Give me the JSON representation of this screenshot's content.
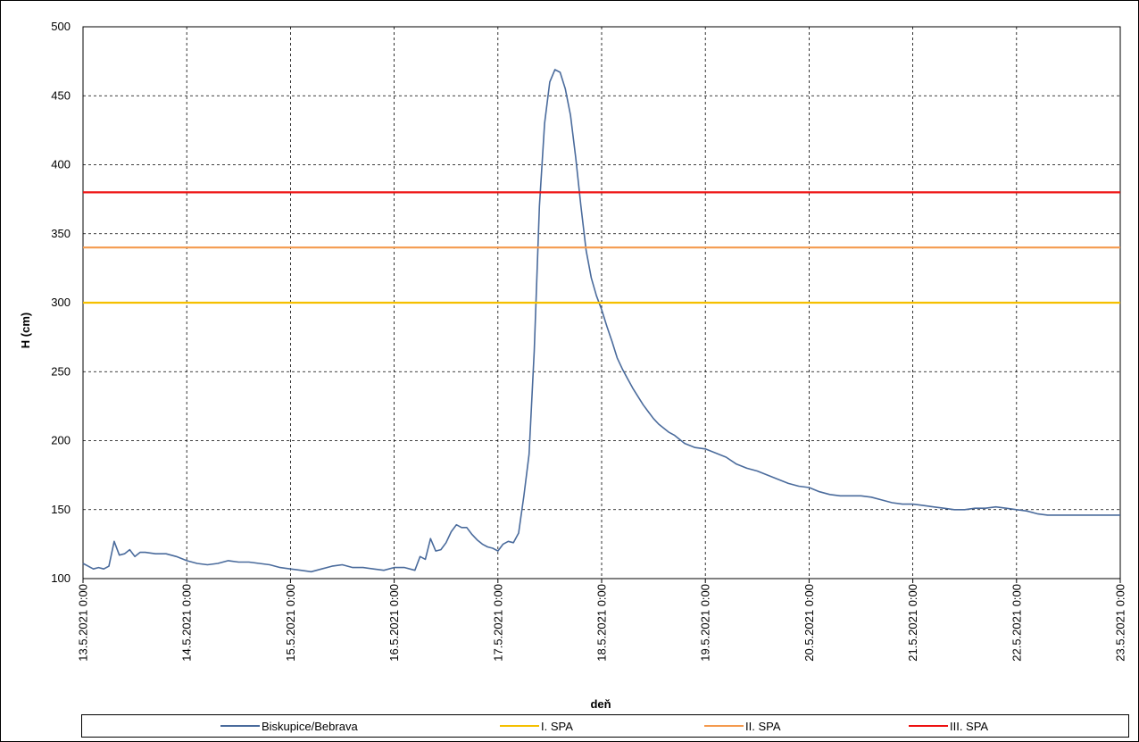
{
  "chart_data": {
    "type": "line",
    "xlabel": "deň",
    "ylabel": "H (cm)",
    "ylim": [
      100,
      500
    ],
    "yticks": [
      "100",
      "150",
      "200",
      "250",
      "300",
      "350",
      "400",
      "450",
      "500"
    ],
    "xticks": [
      "13.5.2021 0:00",
      "14.5.2021 0:00",
      "15.5.2021 0:00",
      "16.5.2021 0:00",
      "17.5.2021 0:00",
      "18.5.2021 0:00",
      "19.5.2021 0:00",
      "20.5.2021 0:00",
      "21.5.2021 0:00",
      "22.5.2021 0:00",
      "23.5.2021 0:00"
    ],
    "grid": true,
    "legend_position": "bottom",
    "series": [
      {
        "name": "Biskupice/Bebrava",
        "color": "#4a6b9c",
        "x_days": [
          0,
          0.05,
          0.1,
          0.15,
          0.2,
          0.25,
          0.3,
          0.35,
          0.4,
          0.45,
          0.5,
          0.55,
          0.6,
          0.7,
          0.8,
          0.9,
          1.0,
          1.1,
          1.2,
          1.3,
          1.4,
          1.5,
          1.6,
          1.7,
          1.8,
          1.9,
          2.0,
          2.1,
          2.2,
          2.3,
          2.4,
          2.5,
          2.6,
          2.7,
          2.8,
          2.9,
          3.0,
          3.1,
          3.2,
          3.25,
          3.3,
          3.35,
          3.4,
          3.45,
          3.5,
          3.55,
          3.6,
          3.65,
          3.7,
          3.75,
          3.8,
          3.85,
          3.9,
          3.95,
          4.0,
          4.05,
          4.1,
          4.15,
          4.2,
          4.25,
          4.3,
          4.35,
          4.4,
          4.45,
          4.5,
          4.55,
          4.6,
          4.65,
          4.7,
          4.75,
          4.8,
          4.85,
          4.9,
          4.95,
          5.0,
          5.05,
          5.1,
          5.15,
          5.2,
          5.25,
          5.3,
          5.35,
          5.4,
          5.45,
          5.5,
          5.55,
          5.6,
          5.65,
          5.7,
          5.8,
          5.9,
          6.0,
          6.1,
          6.2,
          6.3,
          6.4,
          6.5,
          6.6,
          6.7,
          6.8,
          6.9,
          7.0,
          7.1,
          7.2,
          7.3,
          7.4,
          7.5,
          7.6,
          7.7,
          7.8,
          7.9,
          8.0,
          8.1,
          8.2,
          8.3,
          8.4,
          8.5,
          8.6,
          8.7,
          8.8,
          8.9,
          9.0,
          9.1,
          9.2,
          9.3,
          9.4,
          9.5,
          9.6,
          9.7,
          9.8,
          9.9,
          10.0
        ],
        "values": [
          111,
          109,
          107,
          108,
          107,
          109,
          127,
          117,
          118,
          121,
          116,
          119,
          119,
          118,
          118,
          116,
          113,
          111,
          110,
          111,
          113,
          112,
          112,
          111,
          110,
          108,
          107,
          106,
          105,
          107,
          109,
          110,
          108,
          108,
          107,
          106,
          108,
          108,
          106,
          116,
          114,
          129,
          120,
          121,
          126,
          134,
          139,
          137,
          137,
          132,
          128,
          125,
          123,
          122,
          120,
          125,
          127,
          126,
          133,
          160,
          190,
          265,
          370,
          430,
          460,
          469,
          467,
          455,
          436,
          405,
          370,
          338,
          318,
          305,
          295,
          283,
          272,
          260,
          252,
          245,
          238,
          232,
          226,
          221,
          216,
          212,
          209,
          206,
          204,
          198,
          195,
          194,
          191,
          188,
          183,
          180,
          178,
          175,
          172,
          169,
          167,
          166,
          163,
          161,
          160,
          160,
          160,
          159,
          157,
          155,
          154,
          154,
          153,
          152,
          151,
          150,
          150,
          151,
          151,
          152,
          151,
          150,
          149,
          147,
          146,
          146,
          146,
          146,
          146,
          146,
          146,
          146
        ]
      },
      {
        "name": "I. SPA",
        "color": "#f5c000",
        "constant": 300
      },
      {
        "name": "II. SPA",
        "color": "#f49a4e",
        "constant": 340
      },
      {
        "name": "III. SPA",
        "color": "#ee1111",
        "constant": 380
      }
    ]
  }
}
